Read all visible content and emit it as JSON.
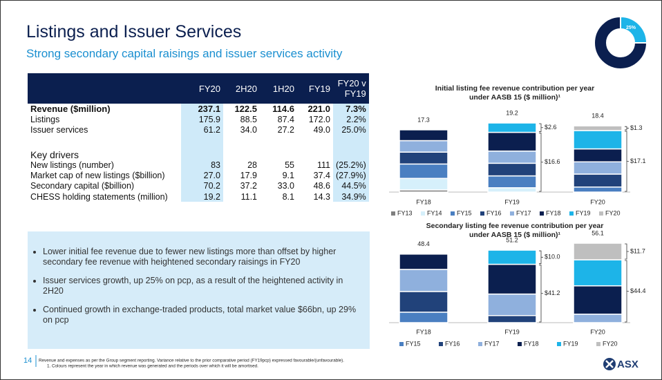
{
  "header": {
    "title": "Listings and Issuer Services",
    "subtitle": "Strong secondary capital raisings and issuer services activity"
  },
  "progress_icon": {
    "value": 25,
    "value_label": "25%"
  },
  "table": {
    "columns": [
      "FY20",
      "2H20",
      "1H20",
      "FY19",
      "FY20 v FY19"
    ],
    "sections": [
      {
        "rows": [
          [
            "Revenue ($million)",
            "237.1",
            "122.5",
            "114.6",
            "221.0",
            "7.3%"
          ],
          [
            "Listings",
            "175.9",
            "88.5",
            "87.4",
            "172.0",
            "2.2%"
          ],
          [
            "Issuer services",
            "61.2",
            "34.0",
            "27.2",
            "49.0",
            "25.0%"
          ]
        ]
      },
      {
        "heading": "Key drivers",
        "rows": [
          [
            "New listings (number)",
            "83",
            "28",
            "55",
            "111",
            "(25.2%)"
          ],
          [
            "Market cap of new listings ($billion)",
            "27.0",
            "17.9",
            "9.1",
            "37.4",
            "(27.9%)"
          ],
          [
            "Secondary capital ($billion)",
            "70.2",
            "37.2",
            "33.0",
            "48.6",
            "44.5%"
          ],
          [
            "CHESS holding statements (million)",
            "19.2",
            "11.1",
            "8.1",
            "14.3",
            "34.9%"
          ]
        ]
      }
    ]
  },
  "bullets": [
    "Lower initial fee revenue due to fewer new listings more than offset by higher secondary fee revenue with heightened secondary raisings in FY20",
    "Issuer services growth, up 25% on pcp, as a result of the heightened activity in 2H20",
    "Continued growth in exchange-traded products, total market value $66bn, up 29% on pcp"
  ],
  "footer": {
    "page": "14",
    "notes": [
      "Revenue and expenses as per the Group segment reporting. Variance relative to the prior comparative period (FY19pcp) expressed favourable/(unfavourable).",
      "1. Colours represent the year in which revenue was generated and the periods over which it will be amortised."
    ],
    "logo": "ASX"
  },
  "chart_data": [
    {
      "type": "bar",
      "stacked": true,
      "title": [
        "Initial listing fee revenue contribution per year",
        "under AASB 15 ($ million)¹"
      ],
      "categories": [
        "FY18",
        "FY19",
        "FY20"
      ],
      "totals": [
        17.3,
        19.2,
        18.4
      ],
      "annotations": [
        null,
        [
          "$16.6",
          "$2.6"
        ],
        [
          "$17.1",
          "$1.3"
        ]
      ],
      "series": [
        {
          "name": "FY13",
          "color": "#7f7f7f",
          "values": [
            0.6,
            null,
            null
          ]
        },
        {
          "name": "FY14",
          "color": "#d6f0fb",
          "values": [
            3.2,
            1.2,
            null
          ]
        },
        {
          "name": "FY15",
          "color": "#4a7fc1",
          "values": [
            4.0,
            3.3,
            1.4
          ]
        },
        {
          "name": "FY16",
          "color": "#21427a",
          "values": [
            3.3,
            3.5,
            3.6
          ]
        },
        {
          "name": "FY17",
          "color": "#8fb0dd",
          "values": [
            3.2,
            3.4,
            3.4
          ]
        },
        {
          "name": "FY18",
          "color": "#0b1f4f",
          "values": [
            3.0,
            5.2,
            3.6
          ]
        },
        {
          "name": "FY19",
          "color": "#1db4e8",
          "values": [
            null,
            2.6,
            5.1
          ]
        },
        {
          "name": "FY20",
          "color": "#bfbfbf",
          "values": [
            null,
            null,
            1.3
          ]
        }
      ]
    },
    {
      "type": "bar",
      "stacked": true,
      "title": [
        "Secondary listing fee revenue contribution per year",
        "under AASB 15 ($ million)¹"
      ],
      "categories": [
        "FY18",
        "FY19",
        "FY20"
      ],
      "totals": [
        48.4,
        51.2,
        56.1
      ],
      "annotations": [
        null,
        [
          "$41.2",
          "$10.0"
        ],
        [
          "$44.4",
          "$11.7"
        ]
      ],
      "series": [
        {
          "name": "FY15",
          "color": "#4a7fc1",
          "values": [
            7.4,
            null,
            null
          ]
        },
        {
          "name": "FY16",
          "color": "#21427a",
          "values": [
            14.6,
            5.0,
            null
          ]
        },
        {
          "name": "FY17",
          "color": "#8fb0dd",
          "values": [
            15.6,
            15.2,
            6.0
          ]
        },
        {
          "name": "FY18",
          "color": "#0b1f4f",
          "values": [
            10.8,
            21.0,
            20.0
          ]
        },
        {
          "name": "FY19",
          "color": "#1db4e8",
          "values": [
            null,
            10.0,
            18.4
          ]
        },
        {
          "name": "FY20",
          "color": "#bfbfbf",
          "values": [
            null,
            null,
            11.7
          ]
        }
      ]
    }
  ]
}
